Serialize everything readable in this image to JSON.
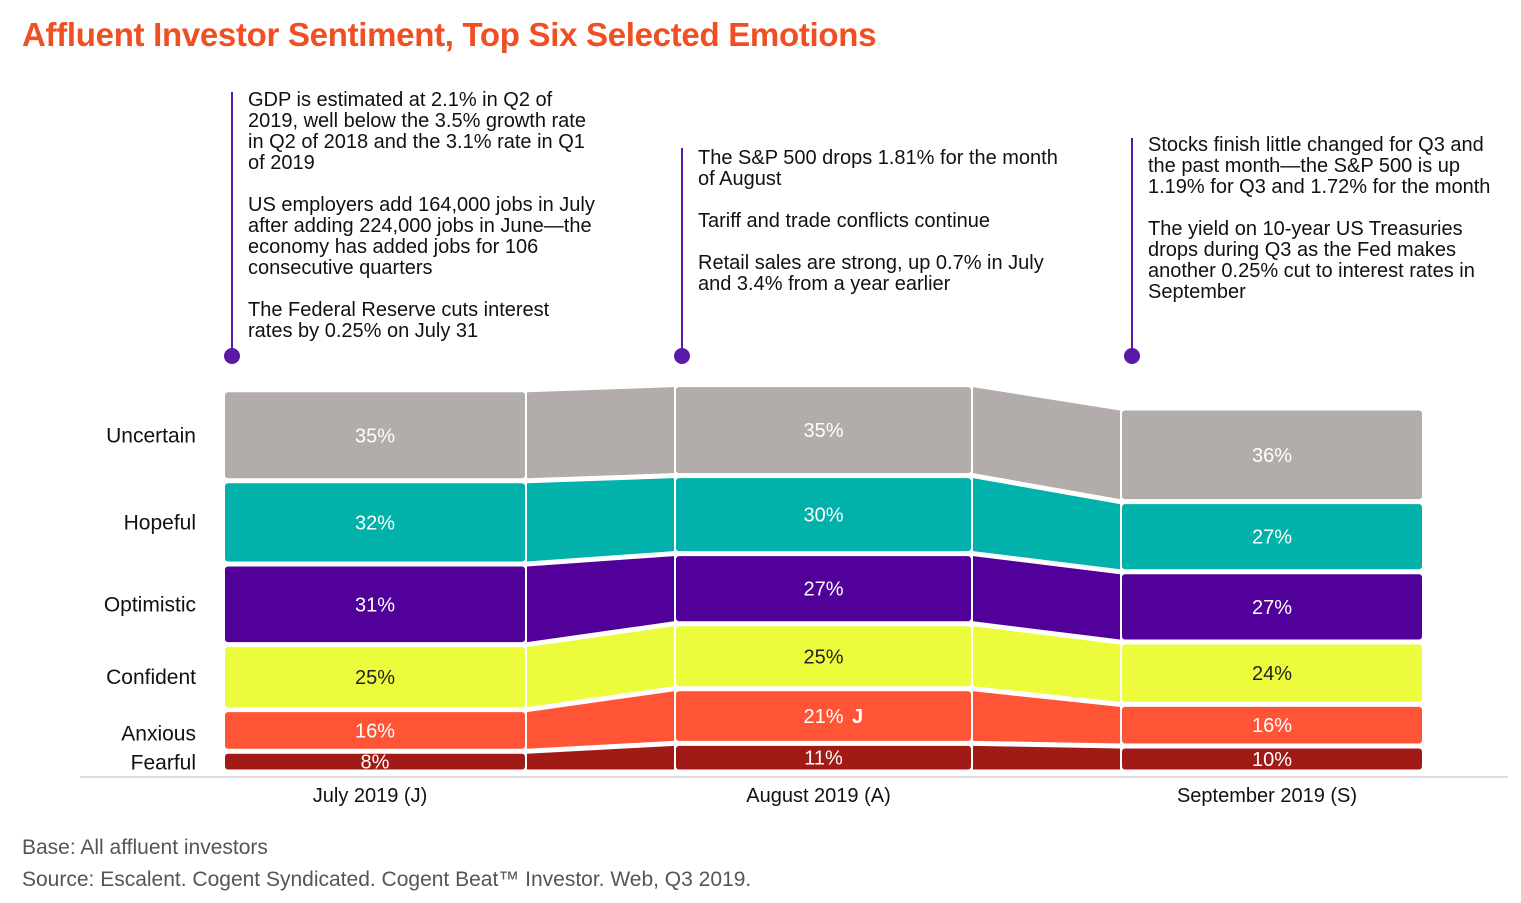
{
  "title": "Affluent Investor Sentiment, Top Six Selected Emotions",
  "annotations": [
    {
      "id": "july",
      "paragraphs": [
        "GDP is estimated at 2.1% in Q2 of 2019, well below the 3.5% growth rate in Q2 of 2018 and the 3.1% rate in Q1 of 2019",
        "US employers add 164,000 jobs in July after adding 224,000 jobs in June—the economy has added jobs for 106 consecutive quarters",
        "The Federal Reserve cuts interest rates by 0.25% on July 31"
      ]
    },
    {
      "id": "august",
      "paragraphs": [
        "The S&P 500 drops 1.81% for the month of August",
        "Tariff and trade conflicts continue",
        "Retail sales are strong, up 0.7% in July and 3.4% from a year earlier"
      ]
    },
    {
      "id": "september",
      "paragraphs": [
        "Stocks finish little changed for Q3 and the past month—the S&P 500 is up 1.19% for Q3 and 1.72% for the month",
        "The yield on 10-year US Treasuries drops during Q3 as the Fed makes another 0.25% cut to interest rates in September"
      ]
    }
  ],
  "chart_data": {
    "type": "bar",
    "subtype": "stacked-ribbon",
    "categories": [
      "July 2019 (J)",
      "August 2019 (A)",
      "September 2019 (S)"
    ],
    "series": [
      {
        "name": "Uncertain",
        "color": "#b2acab",
        "values": [
          35,
          35,
          36
        ],
        "labels": [
          "35%",
          "35%",
          "36%"
        ]
      },
      {
        "name": "Hopeful",
        "color": "#00b2a9",
        "values": [
          32,
          30,
          27
        ],
        "labels": [
          "32%",
          "30%",
          "27%"
        ]
      },
      {
        "name": "Optimistic",
        "color": "#51009a",
        "values": [
          31,
          27,
          27
        ],
        "labels": [
          "31%",
          "27%",
          "27%"
        ]
      },
      {
        "name": "Confident",
        "color": "#ecfc3c",
        "values": [
          25,
          25,
          24
        ],
        "labels": [
          "25%",
          "25%",
          "24%"
        ]
      },
      {
        "name": "Anxious",
        "color": "#ff5536",
        "values": [
          16,
          21,
          16
        ],
        "labels": [
          "16%",
          "21%",
          "16%"
        ]
      },
      {
        "name": "Fearful",
        "color": "#a01a16",
        "values": [
          8,
          11,
          10
        ],
        "labels": [
          "8%",
          "11%",
          "10%"
        ]
      }
    ],
    "significance": [
      {
        "series": "Anxious",
        "category": "August 2019 (A)",
        "marker": "J"
      }
    ],
    "label_colors": {
      "default": "#ffffff",
      "Confident": "#222222"
    },
    "accent": "#5a1aa8"
  },
  "footnotes": {
    "base": "Base: All affluent investors",
    "source": "Source: Escalent. Cogent Syndicated. Cogent Beat™ Investor. Web, Q3 2019."
  }
}
